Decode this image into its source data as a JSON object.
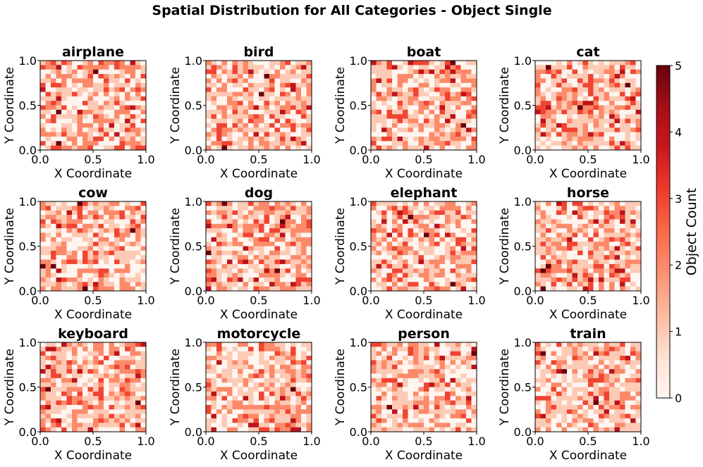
{
  "chart_data": {
    "type": "heatmap",
    "title": "Spatial Distribution for All Categories - Object Single",
    "colormap": "Reds",
    "xlabel": "X Coordinate",
    "ylabel": "Y Coordinate",
    "xlim": [
      0.0,
      1.0
    ],
    "ylim": [
      0.0,
      1.0
    ],
    "xticks": [
      "0.0",
      "0.5",
      "1.0"
    ],
    "yticks": [
      "0.0",
      "0.5",
      "1.0"
    ],
    "grid_bins": [
      20,
      20
    ],
    "colorbar": {
      "label": "Object Count",
      "vmin": 0,
      "vmax": 5,
      "ticks": [
        "0",
        "1",
        "2",
        "3",
        "4",
        "5"
      ]
    },
    "panels": [
      {
        "title": "airplane"
      },
      {
        "title": "bird"
      },
      {
        "title": "boat"
      },
      {
        "title": "cat"
      },
      {
        "title": "cow"
      },
      {
        "title": "dog"
      },
      {
        "title": "elephant"
      },
      {
        "title": "horse"
      },
      {
        "title": "keyboard"
      },
      {
        "title": "motorcycle"
      },
      {
        "title": "person"
      },
      {
        "title": "train"
      }
    ]
  }
}
